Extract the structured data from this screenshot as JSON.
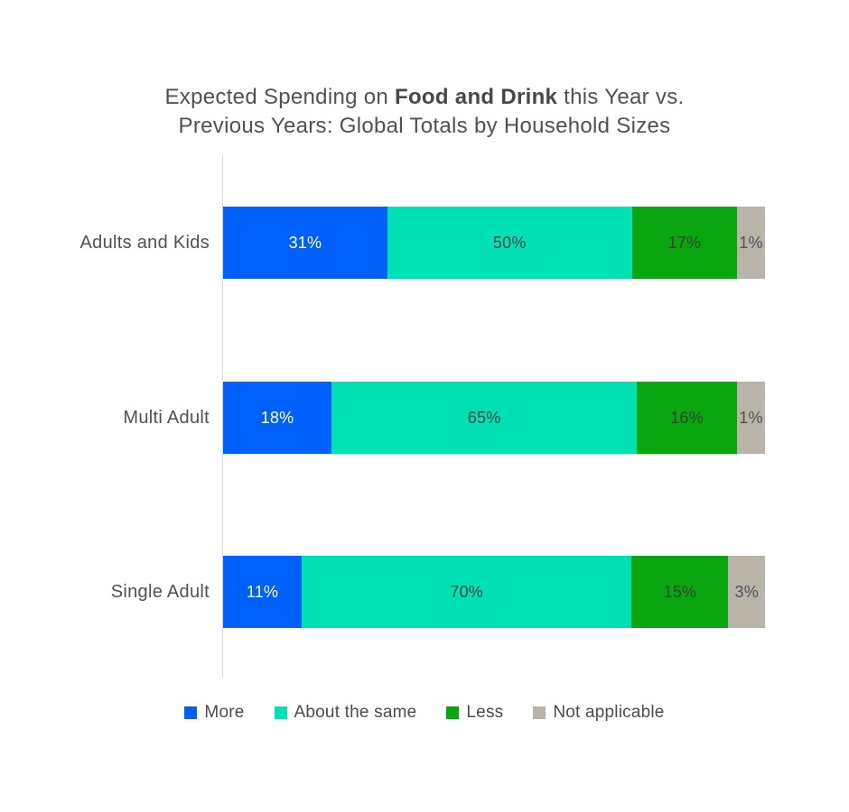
{
  "chart_data": {
    "type": "bar",
    "variant": "horizontal-stacked",
    "title": {
      "prefix": "Expected Spending on ",
      "bold": "Food and Drink",
      "suffix": " this Year vs.",
      "line2": "Previous Years: Global Totals by Household Sizes"
    },
    "categories": [
      "Adults and Kids",
      "Multi Adult",
      "Single Adult"
    ],
    "series": [
      {
        "name": "More",
        "color": "#0061fa",
        "label_color": "#ffffff",
        "values": [
          31,
          18,
          11
        ]
      },
      {
        "name": "About the same",
        "color": "#00e1b6",
        "label_color": "#3a4642",
        "values": [
          50,
          65,
          70
        ]
      },
      {
        "name": "Less",
        "color": "#0aa60f",
        "label_color": "#334433",
        "values": [
          17,
          16,
          15
        ]
      },
      {
        "name": "Not applicable",
        "color": "#bab4a8",
        "label_color": "#515154",
        "values": [
          1,
          1,
          3
        ]
      }
    ],
    "value_suffix": "%",
    "xlim": [
      0,
      100
    ],
    "grid": false,
    "legend_position": "bottom",
    "background": "#ffffff",
    "axis_line_color": "#d8d8d8",
    "text_color": "#515154"
  }
}
